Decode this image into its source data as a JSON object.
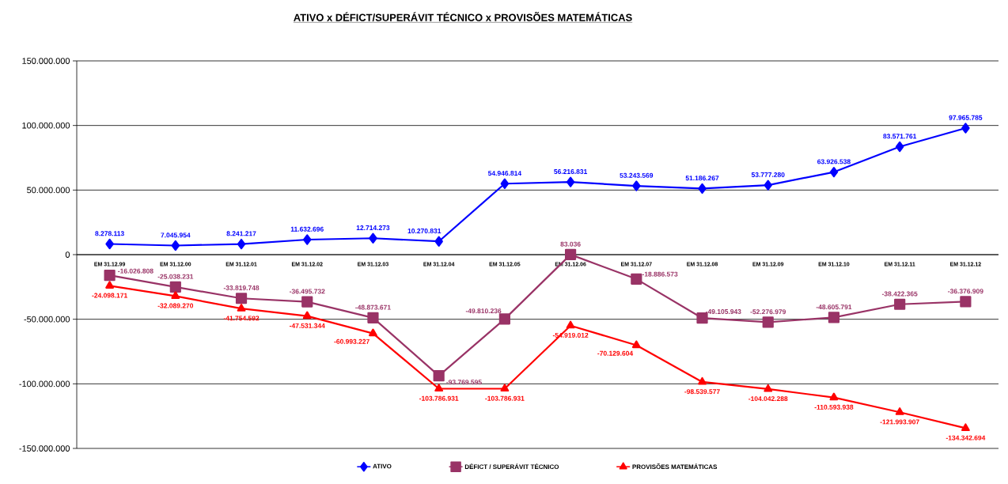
{
  "chart_data": {
    "type": "line",
    "title": "ATIVO x DÉFICT/SUPERÁVIT  TÉCNICO  x PROVISÕES  MATEMÁTICAS",
    "categories": [
      "EM 31.12.99",
      "EM 31.12.00",
      "EM 31.12.01",
      "EM 31.12.02",
      "EM 31.12.03",
      "EM 31.12.04",
      "EM 31.12.05",
      "EM 31.12.06",
      "EM 31.12.07",
      "EM 31.12.08",
      "EM 31.12.09",
      "EM 31.12.10",
      "EM 31.12.11",
      "EM 31.12.12"
    ],
    "series": [
      {
        "name": "ATIVO",
        "color": "#0000ff",
        "marker": "diamond",
        "values": [
          8278113,
          7045954,
          8241217,
          11632696,
          12714273,
          10270831,
          54946814,
          56216831,
          53243569,
          51186267,
          53777280,
          63926538,
          83571761,
          97965785
        ],
        "value_labels": [
          "8.278.113",
          "7.045.954",
          "8.241.217",
          "11.632.696",
          "12.714.273",
          "10.270.831",
          "54.946.814",
          "56.216.831",
          "53.243.569",
          "51.186.267",
          "53.777.280",
          "63.926.538",
          "83.571.761",
          "97.965.785"
        ]
      },
      {
        "name": "DÉFICT / SUPERÁVIT  TÉCNICO",
        "color": "#993366",
        "marker": "square",
        "values": [
          -16026808,
          -25038231,
          -33819748,
          -36495732,
          -48873671,
          -93769595,
          -49810236,
          83036,
          -18886573,
          -49105943,
          -52276979,
          -48605791,
          -38422365,
          -36376909
        ],
        "value_labels": [
          "-16.026.808",
          "-25.038.231",
          "-33.819.748",
          "-36.495.732",
          "-48.873.671",
          "-93.769.595",
          "-49.810.236",
          "83.036",
          "-18.886.573",
          "-49.105.943",
          "-52.276.979",
          "-48.605.791",
          "-38.422.365",
          "-36.376.909"
        ]
      },
      {
        "name": "PROVISÕES  MATEMÁTICAS",
        "color": "#ff0000",
        "marker": "triangle",
        "values": [
          -24098171,
          -32089270,
          -41754592,
          -47531344,
          -60993227,
          -103786931,
          -103786931,
          -54919012,
          -70129604,
          -98539577,
          -104042288,
          -110593938,
          -121993907,
          -134342694
        ],
        "value_labels": [
          "-24.098.171",
          "-32.089.270",
          "-41.754.592",
          "-47.531.344",
          "-60.993.227",
          "-103.786.931",
          "-103.786.931",
          "-54.919.012",
          "-70.129.604",
          "-98.539.577",
          "-104.042.288",
          "-110.593.938",
          "-121.993.907",
          "-134.342.694"
        ]
      }
    ],
    "ylim": [
      -150000000,
      150000000
    ],
    "yticks": [
      {
        "value": -150000000,
        "label": "-150.000.000"
      },
      {
        "value": -100000000,
        "label": "-100.000.000"
      },
      {
        "value": -50000000,
        "label": "-50.000.000"
      },
      {
        "value": 0,
        "label": "0"
      },
      {
        "value": 50000000,
        "label": "50.000.000"
      },
      {
        "value": 100000000,
        "label": "100.000.000"
      },
      {
        "value": 150000000,
        "label": "150.000.000"
      }
    ],
    "grid": "y",
    "legend": "bottom"
  }
}
